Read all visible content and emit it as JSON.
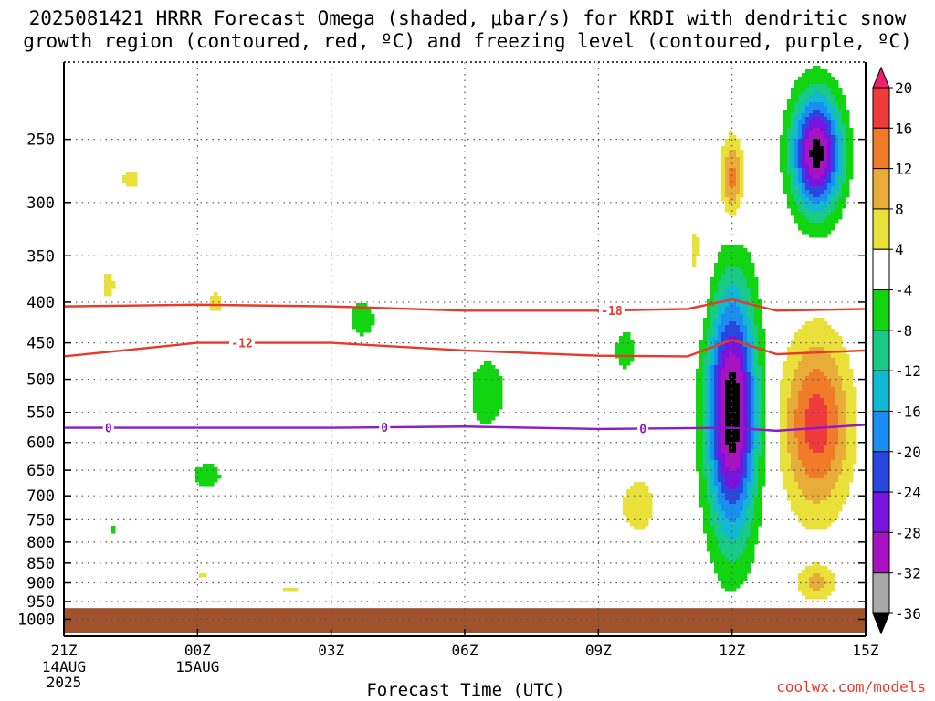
{
  "title": {
    "line1": "2025081421 HRRR Forecast Omega (shaded, μbar/s) for KRDI with dendritic snow",
    "line2": "growth region (contoured, red, ºC) and freezing level (contoured, purple, ºC)"
  },
  "credit": "coolwx.com/models",
  "chart_data": {
    "type": "heatmap",
    "xlabel": "Forecast Time (UTC)",
    "ylabel": "",
    "x_ticks": [
      {
        "label": "21Z",
        "sub": [
          "14AUG",
          "2025"
        ],
        "hour": 0
      },
      {
        "label": "00Z",
        "sub": [
          "15AUG"
        ],
        "hour": 3
      },
      {
        "label": "03Z",
        "sub": [],
        "hour": 6
      },
      {
        "label": "06Z",
        "sub": [],
        "hour": 9
      },
      {
        "label": "09Z",
        "sub": [],
        "hour": 12
      },
      {
        "label": "12Z",
        "sub": [],
        "hour": 15
      },
      {
        "label": "15Z",
        "sub": [],
        "hour": 18
      }
    ],
    "xlim_hours": [
      0,
      18
    ],
    "y_ticks": [
      250,
      300,
      350,
      400,
      450,
      500,
      550,
      600,
      650,
      700,
      750,
      800,
      850,
      900,
      950,
      1000
    ],
    "ylim_hpa": [
      1050,
      200
    ],
    "y_scale": "log",
    "grid": true,
    "surface_hpa": 968,
    "colorbar": {
      "labels": [
        "20",
        "16",
        "12",
        "8",
        "4",
        "-4",
        "-8",
        "-12",
        "-16",
        "-20",
        "-24",
        "-28",
        "-32",
        "-36"
      ],
      "colors": [
        "#f01e6e",
        "#ef3b3b",
        "#f07c2a",
        "#e8ad38",
        "#eae03a",
        "#ffffff",
        "#11d511",
        "#19c986",
        "#11b8d2",
        "#1a8df0",
        "#2a46e0",
        "#7a12e0",
        "#a812c2",
        "#a8a8a8",
        "#000000"
      ]
    },
    "omega_cells": [
      {
        "h": 1.5,
        "p": 280,
        "hw": 0.35,
        "pw": 0.05,
        "v": 5
      },
      {
        "h": 3.4,
        "p": 400,
        "hw": 0.25,
        "pw": 0.06,
        "v": 5
      },
      {
        "h": 1.0,
        "p": 380,
        "hw": 0.25,
        "pw": 0.07,
        "v": 5
      },
      {
        "h": 6.7,
        "p": 420,
        "hw": 0.4,
        "pw": 0.07,
        "v": -6
      },
      {
        "h": 9.5,
        "p": 520,
        "hw": 0.55,
        "pw": 0.14,
        "v": -6
      },
      {
        "h": 3.2,
        "p": 660,
        "hw": 0.45,
        "pw": 0.05,
        "v": -6
      },
      {
        "h": 1.1,
        "p": 770,
        "hw": 0.15,
        "pw": 0.03,
        "v": -5
      },
      {
        "h": 3.1,
        "p": 880,
        "hw": 0.2,
        "pw": 0.02,
        "v": 5
      },
      {
        "h": 5.1,
        "p": 915,
        "hw": 0.4,
        "pw": 0.01,
        "v": 5
      },
      {
        "h": 12.6,
        "p": 460,
        "hw": 0.3,
        "pw": 0.08,
        "v": -6
      },
      {
        "h": 12.9,
        "p": 720,
        "hw": 0.4,
        "pw": 0.08,
        "v": 8
      },
      {
        "h": 15.0,
        "p": 550,
        "hw": 0.55,
        "pw": 0.35,
        "v": -36
      },
      {
        "h": 15.0,
        "p": 280,
        "hw": 0.25,
        "pw": 0.12,
        "v": 14
      },
      {
        "h": 14.2,
        "p": 350,
        "hw": 0.35,
        "pw": 0.2,
        "v": 5
      },
      {
        "h": 16.9,
        "p": 260,
        "hw": 0.55,
        "pw": 0.17,
        "v": -34
      },
      {
        "h": 17.1,
        "p": 370,
        "hw": 0.6,
        "pw": 0.05,
        "v": 3
      },
      {
        "h": 16.9,
        "p": 570,
        "hw": 0.75,
        "pw": 0.25,
        "v": 18
      },
      {
        "h": 16.9,
        "p": 900,
        "hw": 0.45,
        "pw": 0.05,
        "v": 9
      }
    ],
    "contours": [
      {
        "label": "-18",
        "color": "#e8392a",
        "label_at_hour": 12.3,
        "points": [
          [
            0,
            405
          ],
          [
            3,
            403
          ],
          [
            6,
            405
          ],
          [
            9,
            410
          ],
          [
            12,
            410
          ],
          [
            14,
            408
          ],
          [
            15,
            397
          ],
          [
            16,
            410
          ],
          [
            18,
            408
          ]
        ]
      },
      {
        "label": "-12",
        "color": "#e8392a",
        "label_at_hour": 4.0,
        "points": [
          [
            0,
            468
          ],
          [
            3,
            450
          ],
          [
            6,
            450
          ],
          [
            9,
            460
          ],
          [
            12,
            467
          ],
          [
            14,
            468
          ],
          [
            15,
            446
          ],
          [
            16,
            465
          ],
          [
            18,
            460
          ]
        ]
      },
      {
        "label": "0",
        "color": "#8f1ac6",
        "label_at_hour": [
          1.0,
          7.2,
          13.0
        ],
        "points": [
          [
            0,
            575
          ],
          [
            3,
            575
          ],
          [
            6,
            575
          ],
          [
            9,
            573
          ],
          [
            12,
            577
          ],
          [
            15,
            575
          ],
          [
            16,
            580
          ],
          [
            18,
            570
          ]
        ]
      }
    ]
  }
}
